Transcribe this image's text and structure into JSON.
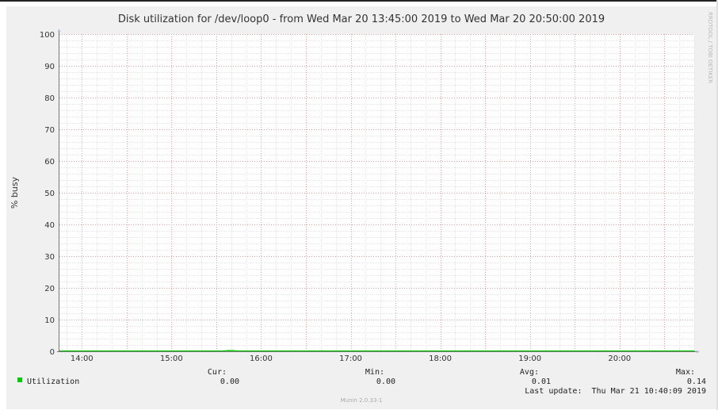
{
  "chart_data": {
    "type": "area",
    "title": "Disk utilization for /dev/loop0 - from Wed Mar 20 13:45:00 2019 to Wed Mar 20 20:50:00 2019",
    "ylabel": "% busy",
    "xlabel": "",
    "x_ticks": [
      "14:00",
      "15:00",
      "16:00",
      "17:00",
      "18:00",
      "19:00",
      "20:00"
    ],
    "y_ticks": [
      "0",
      "10",
      "20",
      "30",
      "40",
      "50",
      "60",
      "70",
      "80",
      "90",
      "100"
    ],
    "xlim": [
      "13:45",
      "20:50"
    ],
    "ylim": [
      0,
      100
    ],
    "grid": true,
    "series": [
      {
        "name": "Utilization",
        "color": "#00cc00",
        "points": [
          [
            "13:45",
            0.0
          ],
          [
            "15:35",
            0.0
          ],
          [
            "15:38",
            0.12
          ],
          [
            "15:41",
            0.14
          ],
          [
            "15:44",
            0.0
          ],
          [
            "20:50",
            0.0
          ]
        ]
      }
    ]
  },
  "legend": {
    "items": [
      {
        "label": "Utilization",
        "color": "#00cc00"
      }
    ],
    "cur_header": "Cur:",
    "min_header": "Min:",
    "avg_header": "Avg:",
    "max_header": "Max:",
    "cur_value": "0.00",
    "min_value": "0.00",
    "avg_value": "0.01",
    "max_value": "0.14"
  },
  "last_update": "Last update:  Thu Mar 21 10:40:09 2019",
  "watermark": "RRDTOOL / TOBI OETIKER",
  "footer": "Munin 2.0.33-1"
}
